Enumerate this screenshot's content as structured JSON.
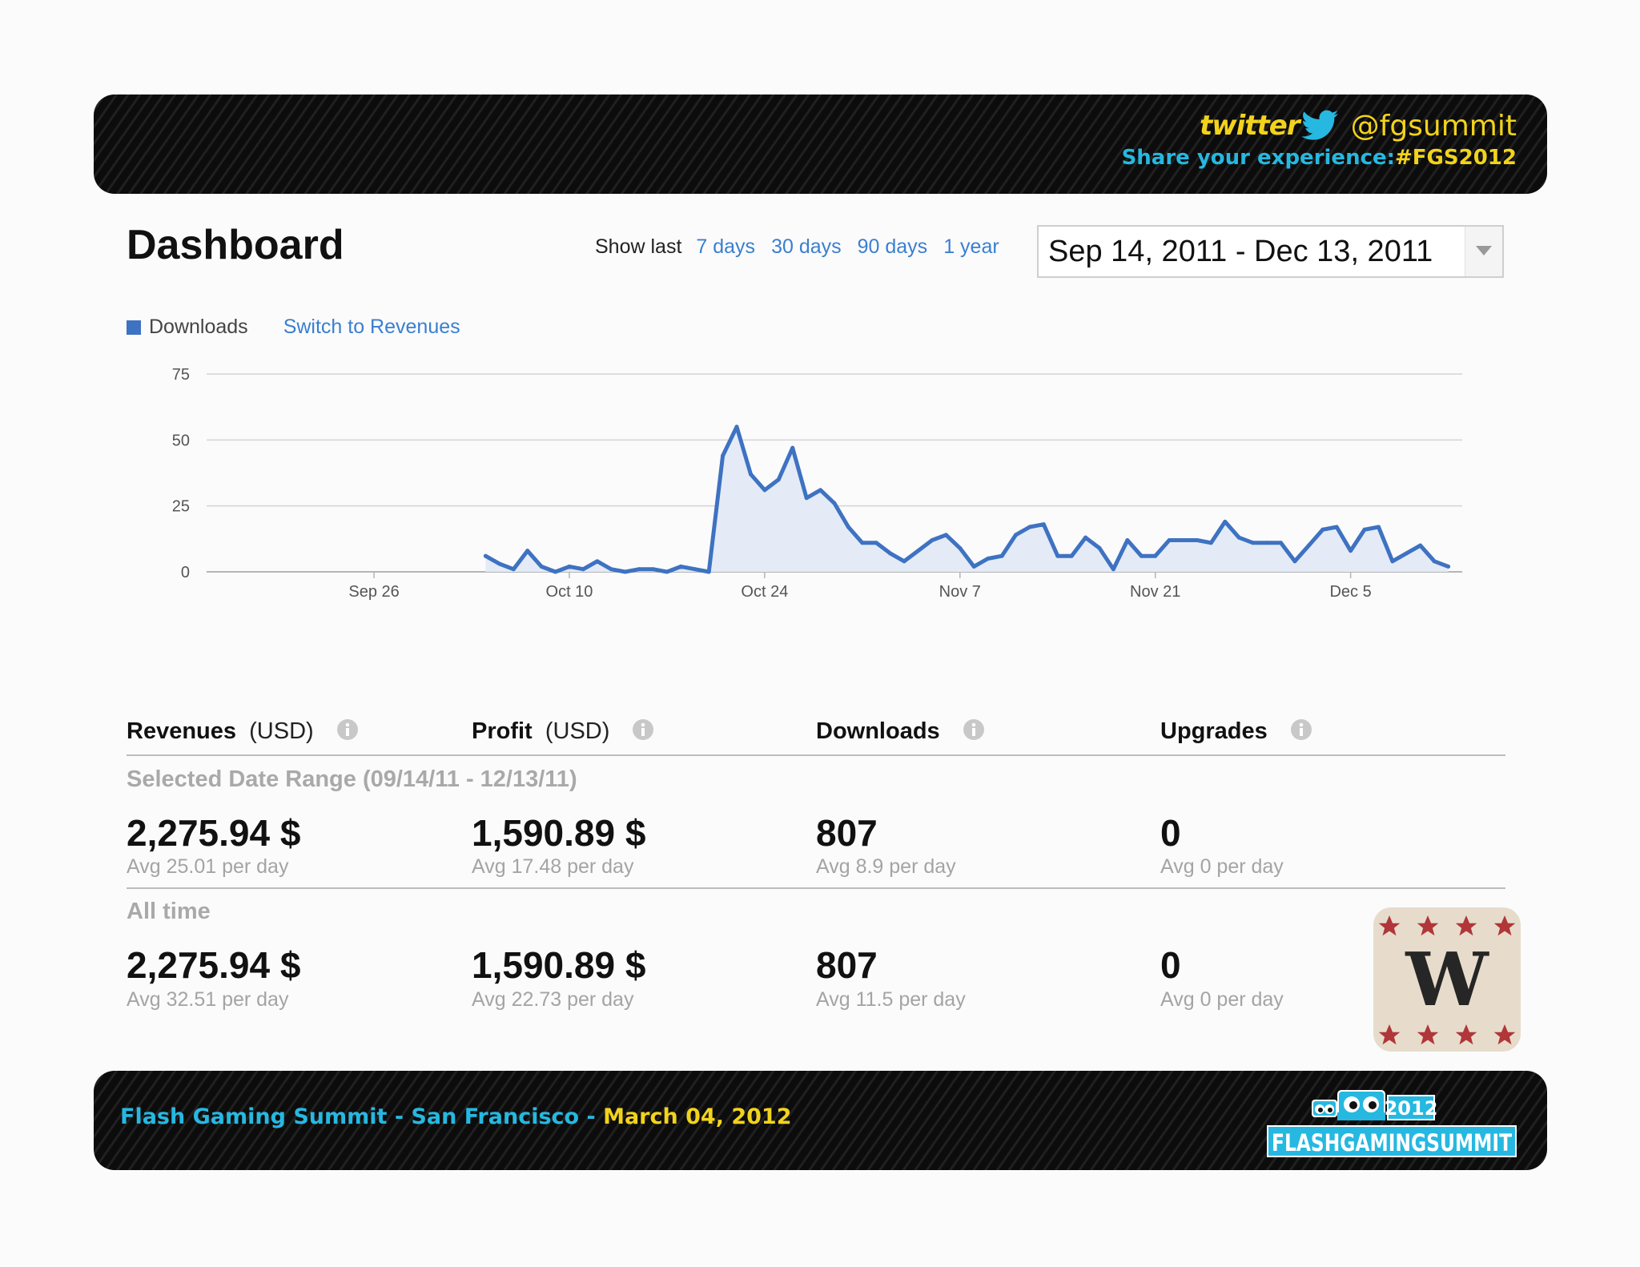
{
  "header": {
    "twitter_word": "twitter",
    "handle": "@fgsummit",
    "share_text": "Share your experience:",
    "hashtag": "#FGS2012"
  },
  "dashboard": {
    "title": "Dashboard",
    "show_last_label": "Show last",
    "range_links": [
      "7 days",
      "30 days",
      "90 days",
      "1 year"
    ],
    "date_range": "Sep 14, 2011 - Dec 13, 2011"
  },
  "legend": {
    "series": "Downloads",
    "switch_link": "Switch to Revenues"
  },
  "chart_data": {
    "type": "area",
    "series": [
      {
        "name": "Downloads",
        "color": "#3e72c2",
        "points": [
          [
            "2011-10-04",
            6
          ],
          [
            "2011-10-05",
            3
          ],
          [
            "2011-10-06",
            1
          ],
          [
            "2011-10-07",
            8
          ],
          [
            "2011-10-08",
            2
          ],
          [
            "2011-10-09",
            0
          ],
          [
            "2011-10-10",
            2
          ],
          [
            "2011-10-11",
            1
          ],
          [
            "2011-10-12",
            4
          ],
          [
            "2011-10-13",
            1
          ],
          [
            "2011-10-14",
            0
          ],
          [
            "2011-10-15",
            1
          ],
          [
            "2011-10-16",
            1
          ],
          [
            "2011-10-17",
            0
          ],
          [
            "2011-10-18",
            2
          ],
          [
            "2011-10-19",
            1
          ],
          [
            "2011-10-20",
            0
          ],
          [
            "2011-10-21",
            44
          ],
          [
            "2011-10-22",
            55
          ],
          [
            "2011-10-23",
            37
          ],
          [
            "2011-10-24",
            31
          ],
          [
            "2011-10-25",
            35
          ],
          [
            "2011-10-26",
            47
          ],
          [
            "2011-10-27",
            28
          ],
          [
            "2011-10-28",
            31
          ],
          [
            "2011-10-29",
            26
          ],
          [
            "2011-10-30",
            17
          ],
          [
            "2011-10-31",
            11
          ],
          [
            "2011-11-01",
            11
          ],
          [
            "2011-11-02",
            7
          ],
          [
            "2011-11-03",
            4
          ],
          [
            "2011-11-04",
            8
          ],
          [
            "2011-11-05",
            12
          ],
          [
            "2011-11-06",
            14
          ],
          [
            "2011-11-07",
            9
          ],
          [
            "2011-11-08",
            2
          ],
          [
            "2011-11-09",
            5
          ],
          [
            "2011-11-10",
            6
          ],
          [
            "2011-11-11",
            14
          ],
          [
            "2011-11-12",
            17
          ],
          [
            "2011-11-13",
            18
          ],
          [
            "2011-11-14",
            6
          ],
          [
            "2011-11-15",
            6
          ],
          [
            "2011-11-16",
            13
          ],
          [
            "2011-11-17",
            9
          ],
          [
            "2011-11-18",
            1
          ],
          [
            "2011-11-19",
            12
          ],
          [
            "2011-11-20",
            6
          ],
          [
            "2011-11-21",
            6
          ],
          [
            "2011-11-22",
            12
          ],
          [
            "2011-11-23",
            12
          ],
          [
            "2011-11-24",
            12
          ],
          [
            "2011-11-25",
            11
          ],
          [
            "2011-11-26",
            19
          ],
          [
            "2011-11-27",
            13
          ],
          [
            "2011-11-28",
            11
          ],
          [
            "2011-11-29",
            11
          ],
          [
            "2011-11-30",
            11
          ],
          [
            "2011-12-01",
            4
          ],
          [
            "2011-12-02",
            10
          ],
          [
            "2011-12-03",
            16
          ],
          [
            "2011-12-04",
            17
          ],
          [
            "2011-12-05",
            8
          ],
          [
            "2011-12-06",
            16
          ],
          [
            "2011-12-07",
            17
          ],
          [
            "2011-12-08",
            4
          ],
          [
            "2011-12-09",
            7
          ],
          [
            "2011-12-10",
            10
          ],
          [
            "2011-12-11",
            4
          ],
          [
            "2011-12-12",
            2
          ]
        ]
      }
    ],
    "xlim": [
      "2011-09-14",
      "2011-12-13"
    ],
    "ylim": [
      0,
      75
    ],
    "y_ticks": [
      0,
      25,
      50,
      75
    ],
    "x_ticks": [
      {
        "date": "2011-09-26",
        "label": "Sep 26"
      },
      {
        "date": "2011-10-10",
        "label": "Oct 10"
      },
      {
        "date": "2011-10-24",
        "label": "Oct 24"
      },
      {
        "date": "2011-11-07",
        "label": "Nov 7"
      },
      {
        "date": "2011-11-21",
        "label": "Nov 21"
      },
      {
        "date": "2011-12-05",
        "label": "Dec 5"
      }
    ],
    "grid": true
  },
  "stats": {
    "columns": [
      {
        "title": "Revenues",
        "unit": "(USD)"
      },
      {
        "title": "Profit",
        "unit": "(USD)"
      },
      {
        "title": "Downloads",
        "unit": ""
      },
      {
        "title": "Upgrades",
        "unit": ""
      }
    ],
    "selected_label": "Selected Date Range (09/14/11 - 12/13/11)",
    "selected": [
      {
        "value": "2,275.94 $",
        "avg": "Avg 25.01 per day"
      },
      {
        "value": "1,590.89 $",
        "avg": "Avg 17.48 per day"
      },
      {
        "value": "807",
        "avg": "Avg 8.9 per day"
      },
      {
        "value": "0",
        "avg": "Avg 0 per day"
      }
    ],
    "alltime_label": "All time",
    "alltime": [
      {
        "value": "2,275.94 $",
        "avg": "Avg 32.51 per day"
      },
      {
        "value": "1,590.89 $",
        "avg": "Avg 22.73 per day"
      },
      {
        "value": "807",
        "avg": "Avg 11.5 per day"
      },
      {
        "value": "0",
        "avg": "Avg 0 per day"
      }
    ]
  },
  "badge": {
    "letter": "W",
    "icon": "game-badge-icon"
  },
  "footer": {
    "event": "Flash Gaming Summit - San Francisco - ",
    "date": "March 04, 2012",
    "logo_year": "2012",
    "logo_text": "FLASHGAMINGSUMMIT"
  },
  "colors": {
    "accent": "#3a7fd0",
    "series": "#3e72c2",
    "banner_cyan": "#26b8e0",
    "banner_yellow": "#f2d31b"
  }
}
